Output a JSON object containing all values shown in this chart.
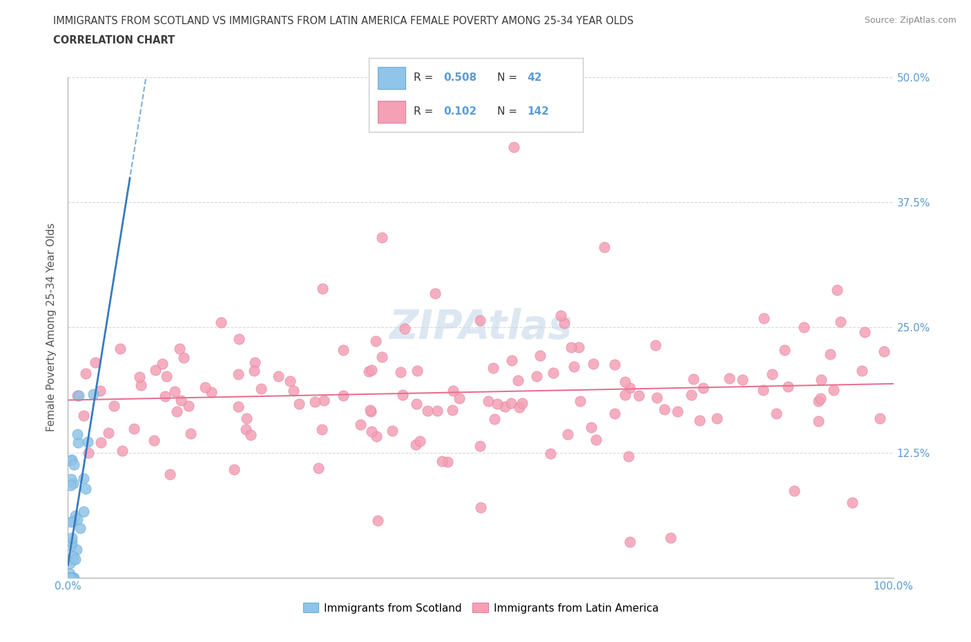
{
  "title_line1": "IMMIGRANTS FROM SCOTLAND VS IMMIGRANTS FROM LATIN AMERICA FEMALE POVERTY AMONG 25-34 YEAR OLDS",
  "title_line2": "CORRELATION CHART",
  "source": "Source: ZipAtlas.com",
  "ylabel": "Female Poverty Among 25-34 Year Olds",
  "xlim": [
    0.0,
    1.0
  ],
  "ylim": [
    0.0,
    0.5
  ],
  "scotland_color": "#90C4E8",
  "scotland_edge": "#6aaad4",
  "latin_color": "#F4A0B5",
  "latin_edge": "#e080a0",
  "scotland_line_color": "#3a7abf",
  "scotland_dash_color": "#7ab0d8",
  "latin_line_color": "#e87090",
  "tick_color": "#5a9bd4",
  "title_color": "#3a3a3a",
  "ylabel_color": "#555555",
  "source_color": "#888888",
  "background_color": "#ffffff",
  "grid_color": "#d8d8d8",
  "legend_border_color": "#cccccc",
  "legend_R_color": "#5a9bd4",
  "scotland_R": "0.508",
  "scotland_N": "42",
  "latin_R": "0.102",
  "latin_N": "142"
}
